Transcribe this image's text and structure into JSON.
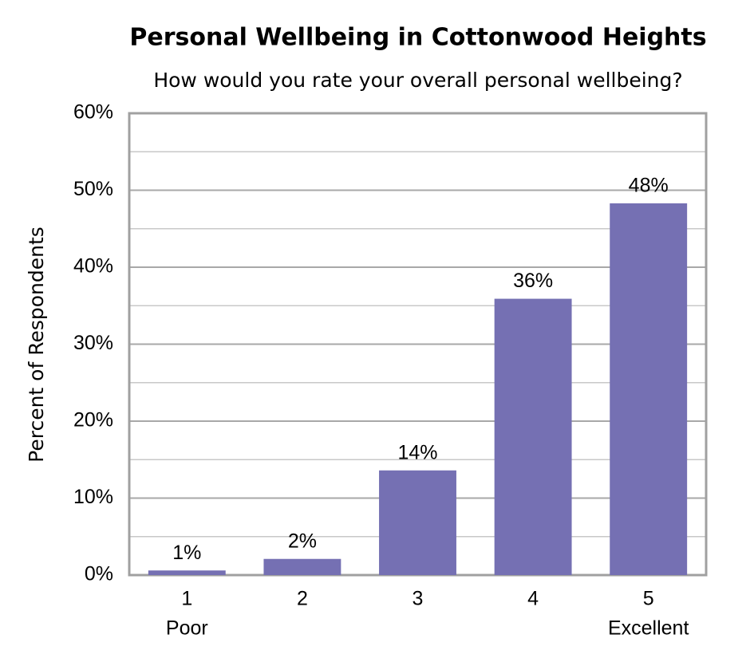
{
  "chart_data": {
    "type": "bar",
    "title": "Personal Wellbeing in Cottonwood Heights",
    "subtitle": "How would you rate your overall personal wellbeing?",
    "y_label": "Percent of Respondents",
    "categories": [
      "1",
      "2",
      "3",
      "4",
      "5"
    ],
    "category_sublabels": [
      "Poor",
      null,
      null,
      null,
      "Excellent"
    ],
    "values": [
      0.6,
      2.1,
      13.6,
      35.9,
      48.3
    ],
    "value_labels": [
      "1%",
      "2%",
      "14%",
      "36%",
      "48%"
    ],
    "color": "#7570b3",
    "ylim": [
      0,
      60
    ],
    "yticks": [
      {
        "value": 0,
        "label": "0%"
      },
      {
        "value": 10,
        "label": "10%"
      },
      {
        "value": 20,
        "label": "20%"
      },
      {
        "value": 30,
        "label": "30%"
      },
      {
        "value": 40,
        "label": "40%"
      },
      {
        "value": 50,
        "label": "50%"
      },
      {
        "value": 60,
        "label": "60%"
      }
    ],
    "minor_yticks": [
      5,
      15,
      25,
      35,
      45,
      55
    ],
    "grid": true
  }
}
